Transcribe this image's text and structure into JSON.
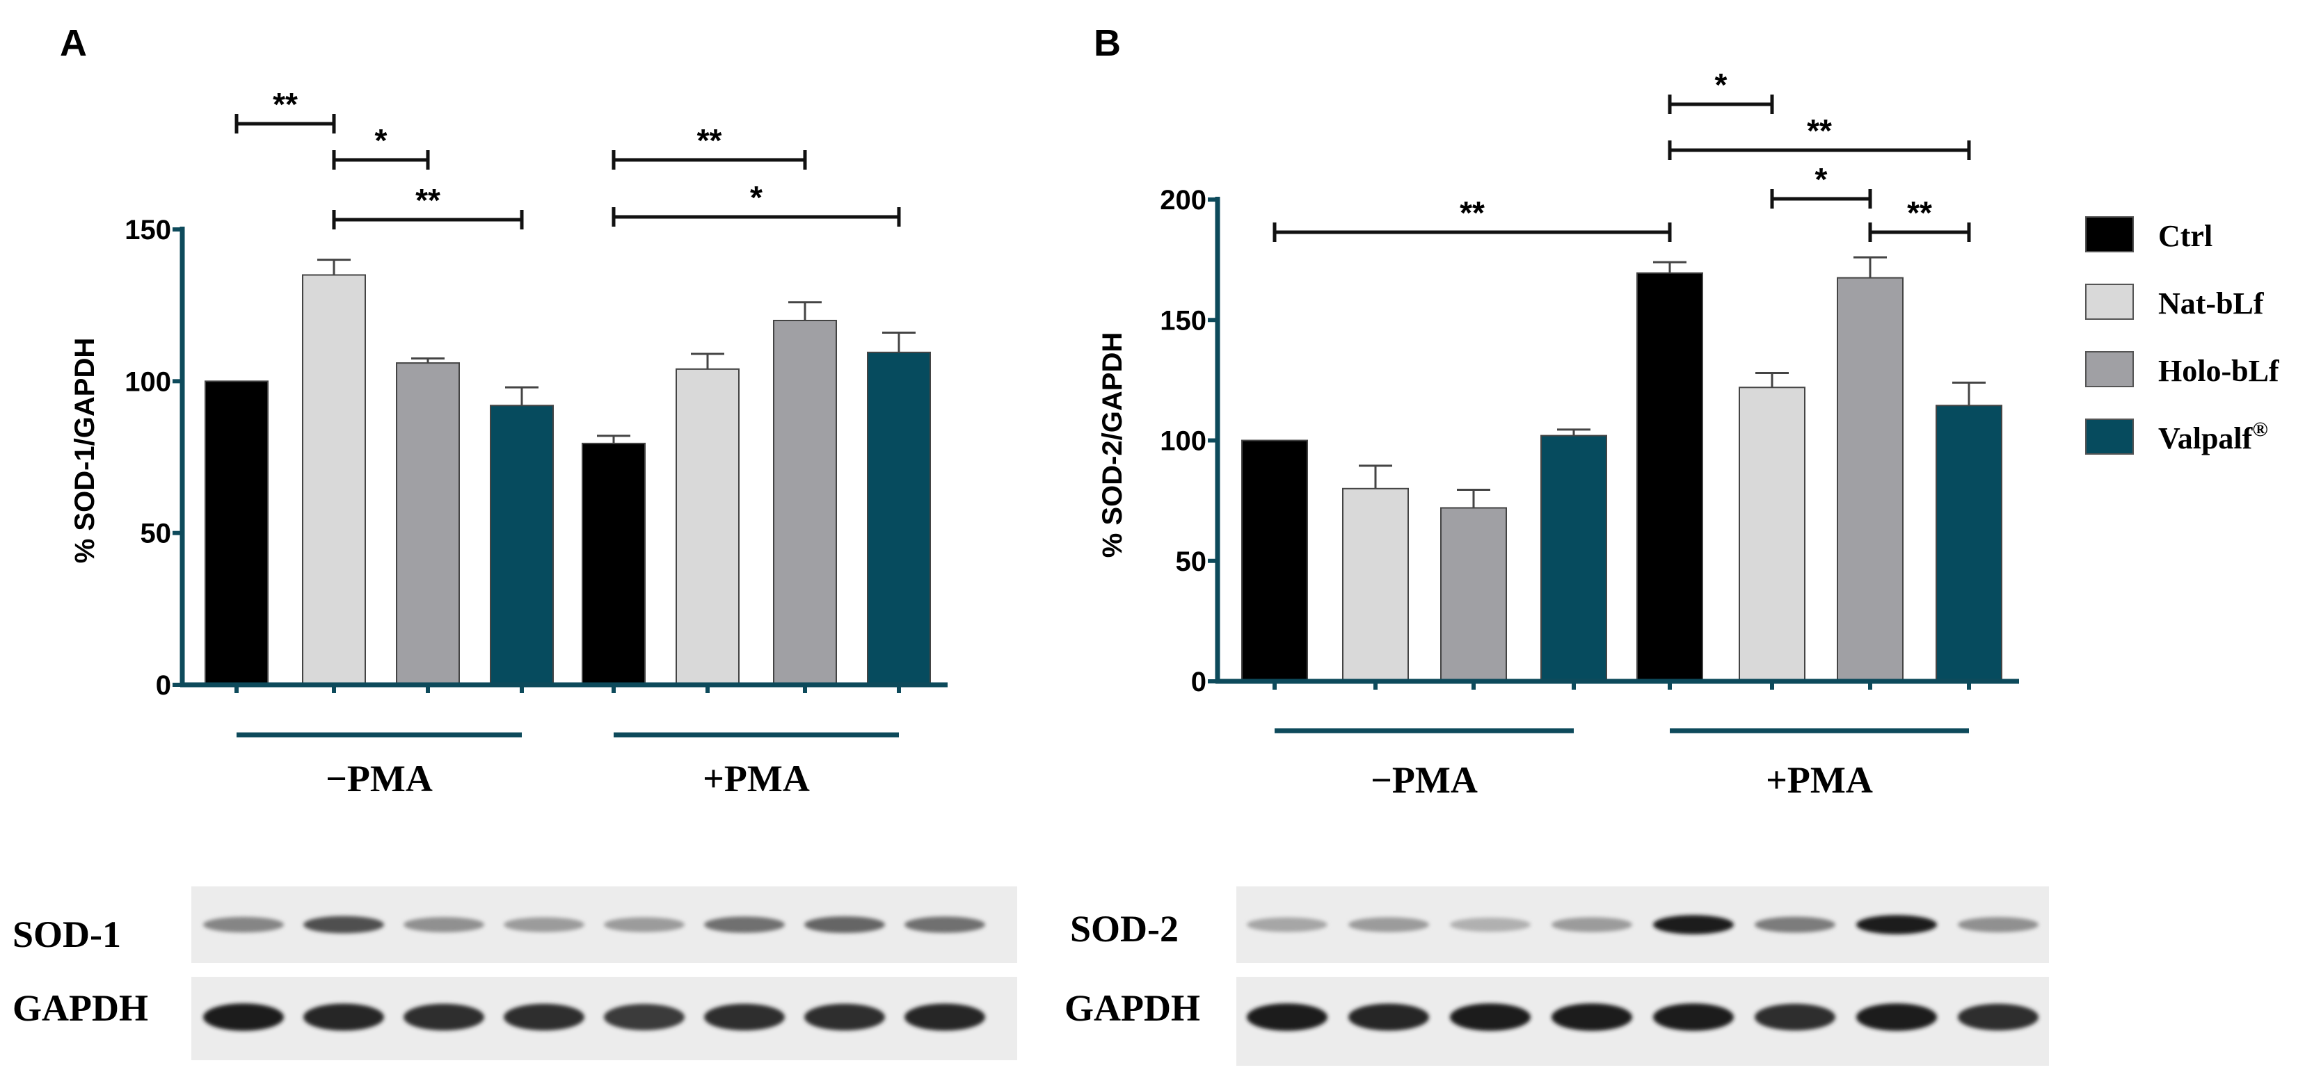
{
  "colors": {
    "Ctrl": "#000000",
    "Nat-bLf": "#d9d9d9",
    "Holo-bLf": "#a0a0a4",
    "Valpalf": "#064b5e",
    "axis": "#0d4a5b",
    "band": "#0d4a5b"
  },
  "legend": {
    "position": "right",
    "items": [
      {
        "name": "Ctrl",
        "color_key": "Ctrl"
      },
      {
        "name": "Nat-bLf",
        "color_key": "Nat-bLf"
      },
      {
        "name": "Holo-bLf",
        "color_key": "Holo-bLf"
      },
      {
        "name": "Valpalf",
        "sup": "®",
        "color_key": "Valpalf"
      }
    ]
  },
  "chart_data": [
    {
      "panel": "A",
      "type": "bar",
      "ylabel": "% SOD-1/GAPDH",
      "ylim": [
        0,
        150
      ],
      "yticks": [
        0,
        50,
        100,
        150
      ],
      "groups": [
        "−PMA",
        "+PMA"
      ],
      "series": [
        {
          "name": "Ctrl",
          "values": [
            100,
            79.5
          ],
          "errors": [
            0,
            2.5
          ]
        },
        {
          "name": "Nat-bLf",
          "values": [
            135,
            104
          ],
          "errors": [
            5,
            5
          ]
        },
        {
          "name": "Holo-bLf",
          "values": [
            106,
            120
          ],
          "errors": [
            1.5,
            6
          ]
        },
        {
          "name": "Valpalf",
          "values": [
            92,
            109.5
          ],
          "errors": [
            6,
            6.5
          ]
        }
      ],
      "significance": [
        {
          "from": [
            0,
            0
          ],
          "to": [
            0,
            1
          ],
          "label": "**"
        },
        {
          "from": [
            0,
            1
          ],
          "to": [
            0,
            2
          ],
          "label": "*"
        },
        {
          "from": [
            0,
            1
          ],
          "to": [
            0,
            3
          ],
          "label": "**"
        },
        {
          "from": [
            1,
            0
          ],
          "to": [
            1,
            2
          ],
          "label": "**"
        },
        {
          "from": [
            1,
            0
          ],
          "to": [
            1,
            3
          ],
          "label": "*"
        }
      ],
      "blot": {
        "rows": [
          "SOD-1",
          "GAPDH"
        ]
      }
    },
    {
      "panel": "B",
      "type": "bar",
      "ylabel": "% SOD-2/GAPDH",
      "ylim": [
        0,
        200
      ],
      "yticks": [
        0,
        50,
        100,
        150,
        200
      ],
      "groups": [
        "−PMA",
        "+PMA"
      ],
      "series": [
        {
          "name": "Ctrl",
          "values": [
            100,
            169.5
          ],
          "errors": [
            0,
            4.5
          ]
        },
        {
          "name": "Nat-bLf",
          "values": [
            80,
            122
          ],
          "errors": [
            9.5,
            6
          ]
        },
        {
          "name": "Holo-bLf",
          "values": [
            72,
            167.5
          ],
          "errors": [
            7.5,
            8.5
          ]
        },
        {
          "name": "Valpalf",
          "values": [
            102,
            114.5
          ],
          "errors": [
            2.5,
            9.5
          ]
        }
      ],
      "significance": [
        {
          "from": [
            0,
            0
          ],
          "to": [
            1,
            0
          ],
          "label": "**"
        },
        {
          "from": [
            1,
            0
          ],
          "to": [
            1,
            1
          ],
          "label": "*"
        },
        {
          "from": [
            1,
            0
          ],
          "to": [
            1,
            3
          ],
          "label": "**"
        },
        {
          "from": [
            1,
            1
          ],
          "to": [
            1,
            2
          ],
          "label": "*"
        },
        {
          "from": [
            1,
            2
          ],
          "to": [
            1,
            3
          ],
          "label": "**"
        }
      ],
      "blot": {
        "rows": [
          "SOD-2",
          "GAPDH"
        ]
      }
    }
  ],
  "blot_intensity": {
    "A": {
      "SOD-1": [
        0.45,
        0.7,
        0.4,
        0.35,
        0.35,
        0.55,
        0.6,
        0.55
      ],
      "GAPDH": [
        0.95,
        0.9,
        0.85,
        0.85,
        0.8,
        0.85,
        0.85,
        0.9
      ]
    },
    "B": {
      "SOD-2": [
        0.3,
        0.35,
        0.25,
        0.35,
        0.95,
        0.5,
        0.95,
        0.4
      ],
      "GAPDH": [
        0.95,
        0.9,
        0.95,
        0.95,
        0.95,
        0.85,
        0.95,
        0.85
      ]
    }
  }
}
